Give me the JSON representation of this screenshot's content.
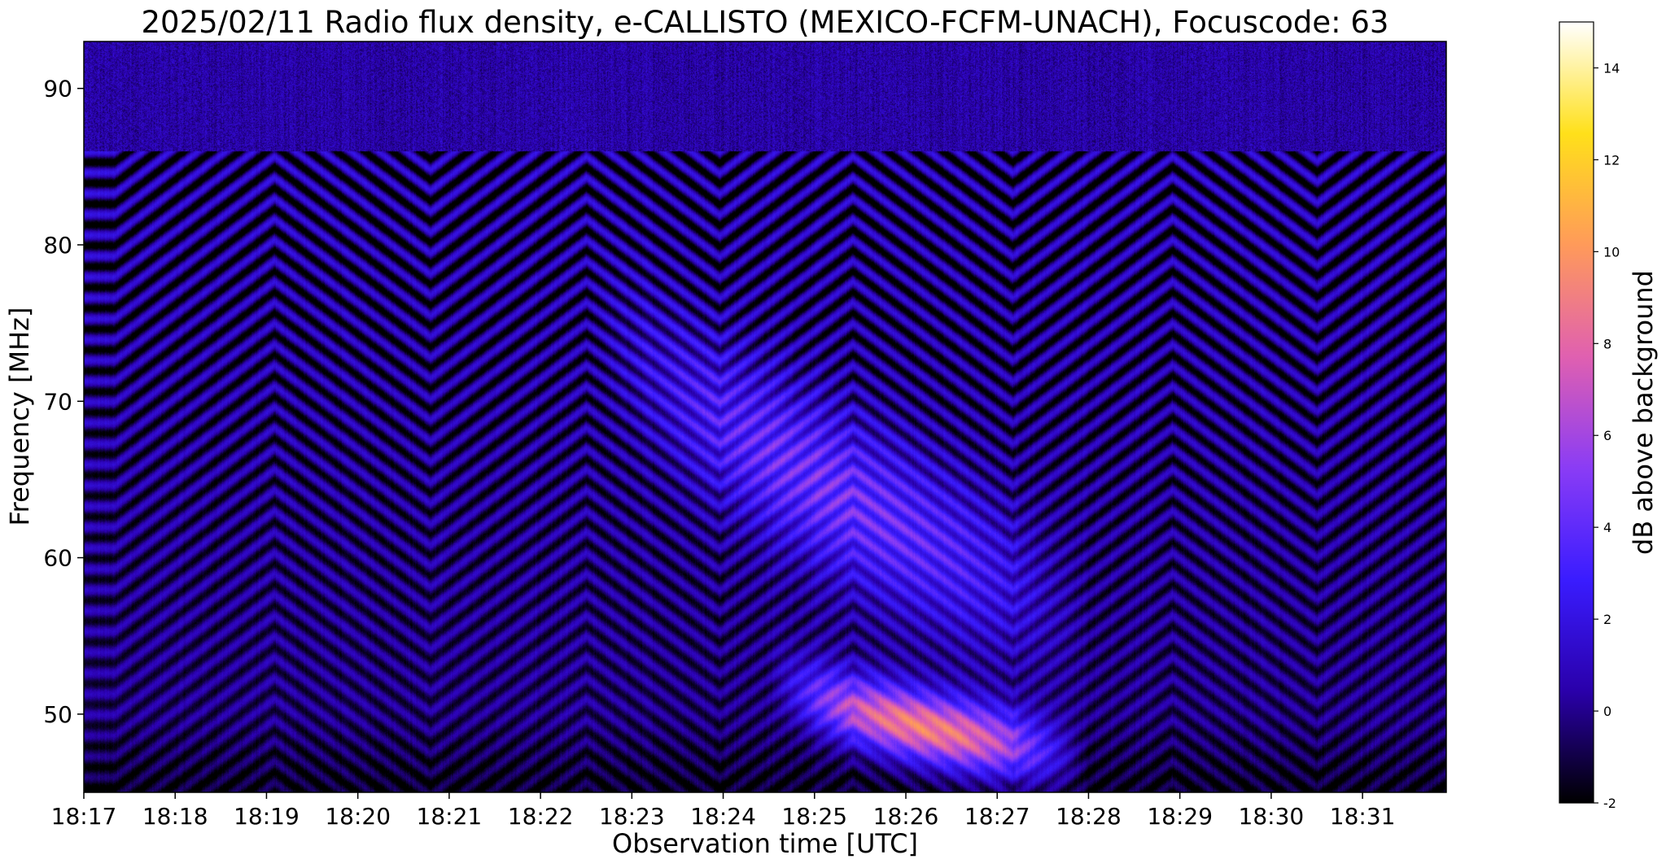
{
  "chart_data": {
    "type": "heatmap",
    "title": "2025/02/11  Radio flux density, e-CALLISTO (MEXICO-FCFM-UNACH), Focuscode: 63",
    "xlabel": "Observation time [UTC]",
    "ylabel": "Frequency [MHz]",
    "colorbar_label": "dB above background",
    "x_range": [
      "18:17:00",
      "18:31:55"
    ],
    "x_ticks": [
      "18:17",
      "18:18",
      "18:19",
      "18:20",
      "18:21",
      "18:22",
      "18:23",
      "18:24",
      "18:25",
      "18:26",
      "18:27",
      "18:28",
      "18:29",
      "18:30",
      "18:31"
    ],
    "y_range": [
      45,
      93
    ],
    "y_ticks": [
      50,
      60,
      70,
      80,
      90
    ],
    "colorbar_range": [
      -2,
      15
    ],
    "colorbar_ticks": [
      -2,
      0,
      2,
      4,
      6,
      8,
      10,
      12,
      14
    ],
    "colormap": "gnuplot2",
    "colormap_stops": [
      "#000000",
      "#2a00aa",
      "#3a1cff",
      "#8a3cf5",
      "#e060b0",
      "#ff9a5a",
      "#ffe01a",
      "#ffffff"
    ],
    "features": [
      {
        "kind": "type II radio burst (fundamental)",
        "start_time": "18:24:30",
        "end_time": "18:28:30",
        "start_freq_mhz": 53,
        "end_freq_mhz": 46.5,
        "peak_db": 9.5
      },
      {
        "kind": "type II radio burst (harmonic)",
        "start_time": "18:22:30",
        "end_time": "18:28:00",
        "start_freq_mhz": 77,
        "end_freq_mhz": 56,
        "peak_db": 4.5
      },
      {
        "kind": "noise band",
        "freq_from_mhz": 86,
        "freq_to_mhz": 93,
        "level_db": 0.5
      }
    ]
  }
}
